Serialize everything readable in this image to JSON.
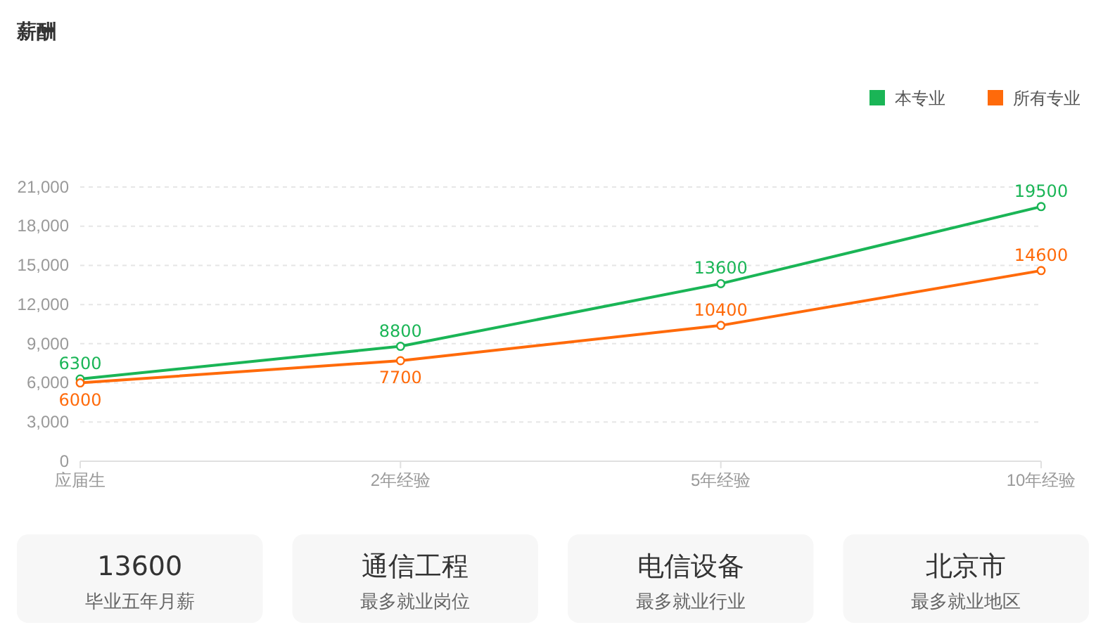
{
  "chart_data": [
    {
      "type": "line",
      "title": "薪酬",
      "categories": [
        "应届生",
        "2年经验",
        "5年经验",
        "10年经验"
      ],
      "series": [
        {
          "name": "本专业",
          "color": "#1ab556",
          "values": [
            6300,
            8800,
            13600,
            19500
          ]
        },
        {
          "name": "所有专业",
          "color": "#ff6a0a",
          "values": [
            6000,
            7700,
            10400,
            14600
          ]
        }
      ],
      "ylim": [
        0,
        21000
      ],
      "yticks": [
        0,
        {
          "value": 3000,
          "label": "3,000"
        },
        {
          "value": 6000,
          "label": "6,000"
        },
        {
          "value": 9000,
          "label": "9,000"
        },
        {
          "value": 12000,
          "label": "12,000"
        },
        {
          "value": 15000,
          "label": "15,000"
        },
        {
          "value": 18000,
          "label": "18,000"
        },
        {
          "value": 21000,
          "label": "21,000"
        }
      ],
      "grid": "y",
      "legend": "top right",
      "marker": "circle",
      "data_labels": true
    },
    {
      "type": "other",
      "annotations": [
        "13600",
        "毕业五年月薪",
        "通信工程",
        "最多就业岗位",
        "电信设备",
        "最多就业行业",
        "北京市",
        "最多就业地区"
      ]
    }
  ]
}
